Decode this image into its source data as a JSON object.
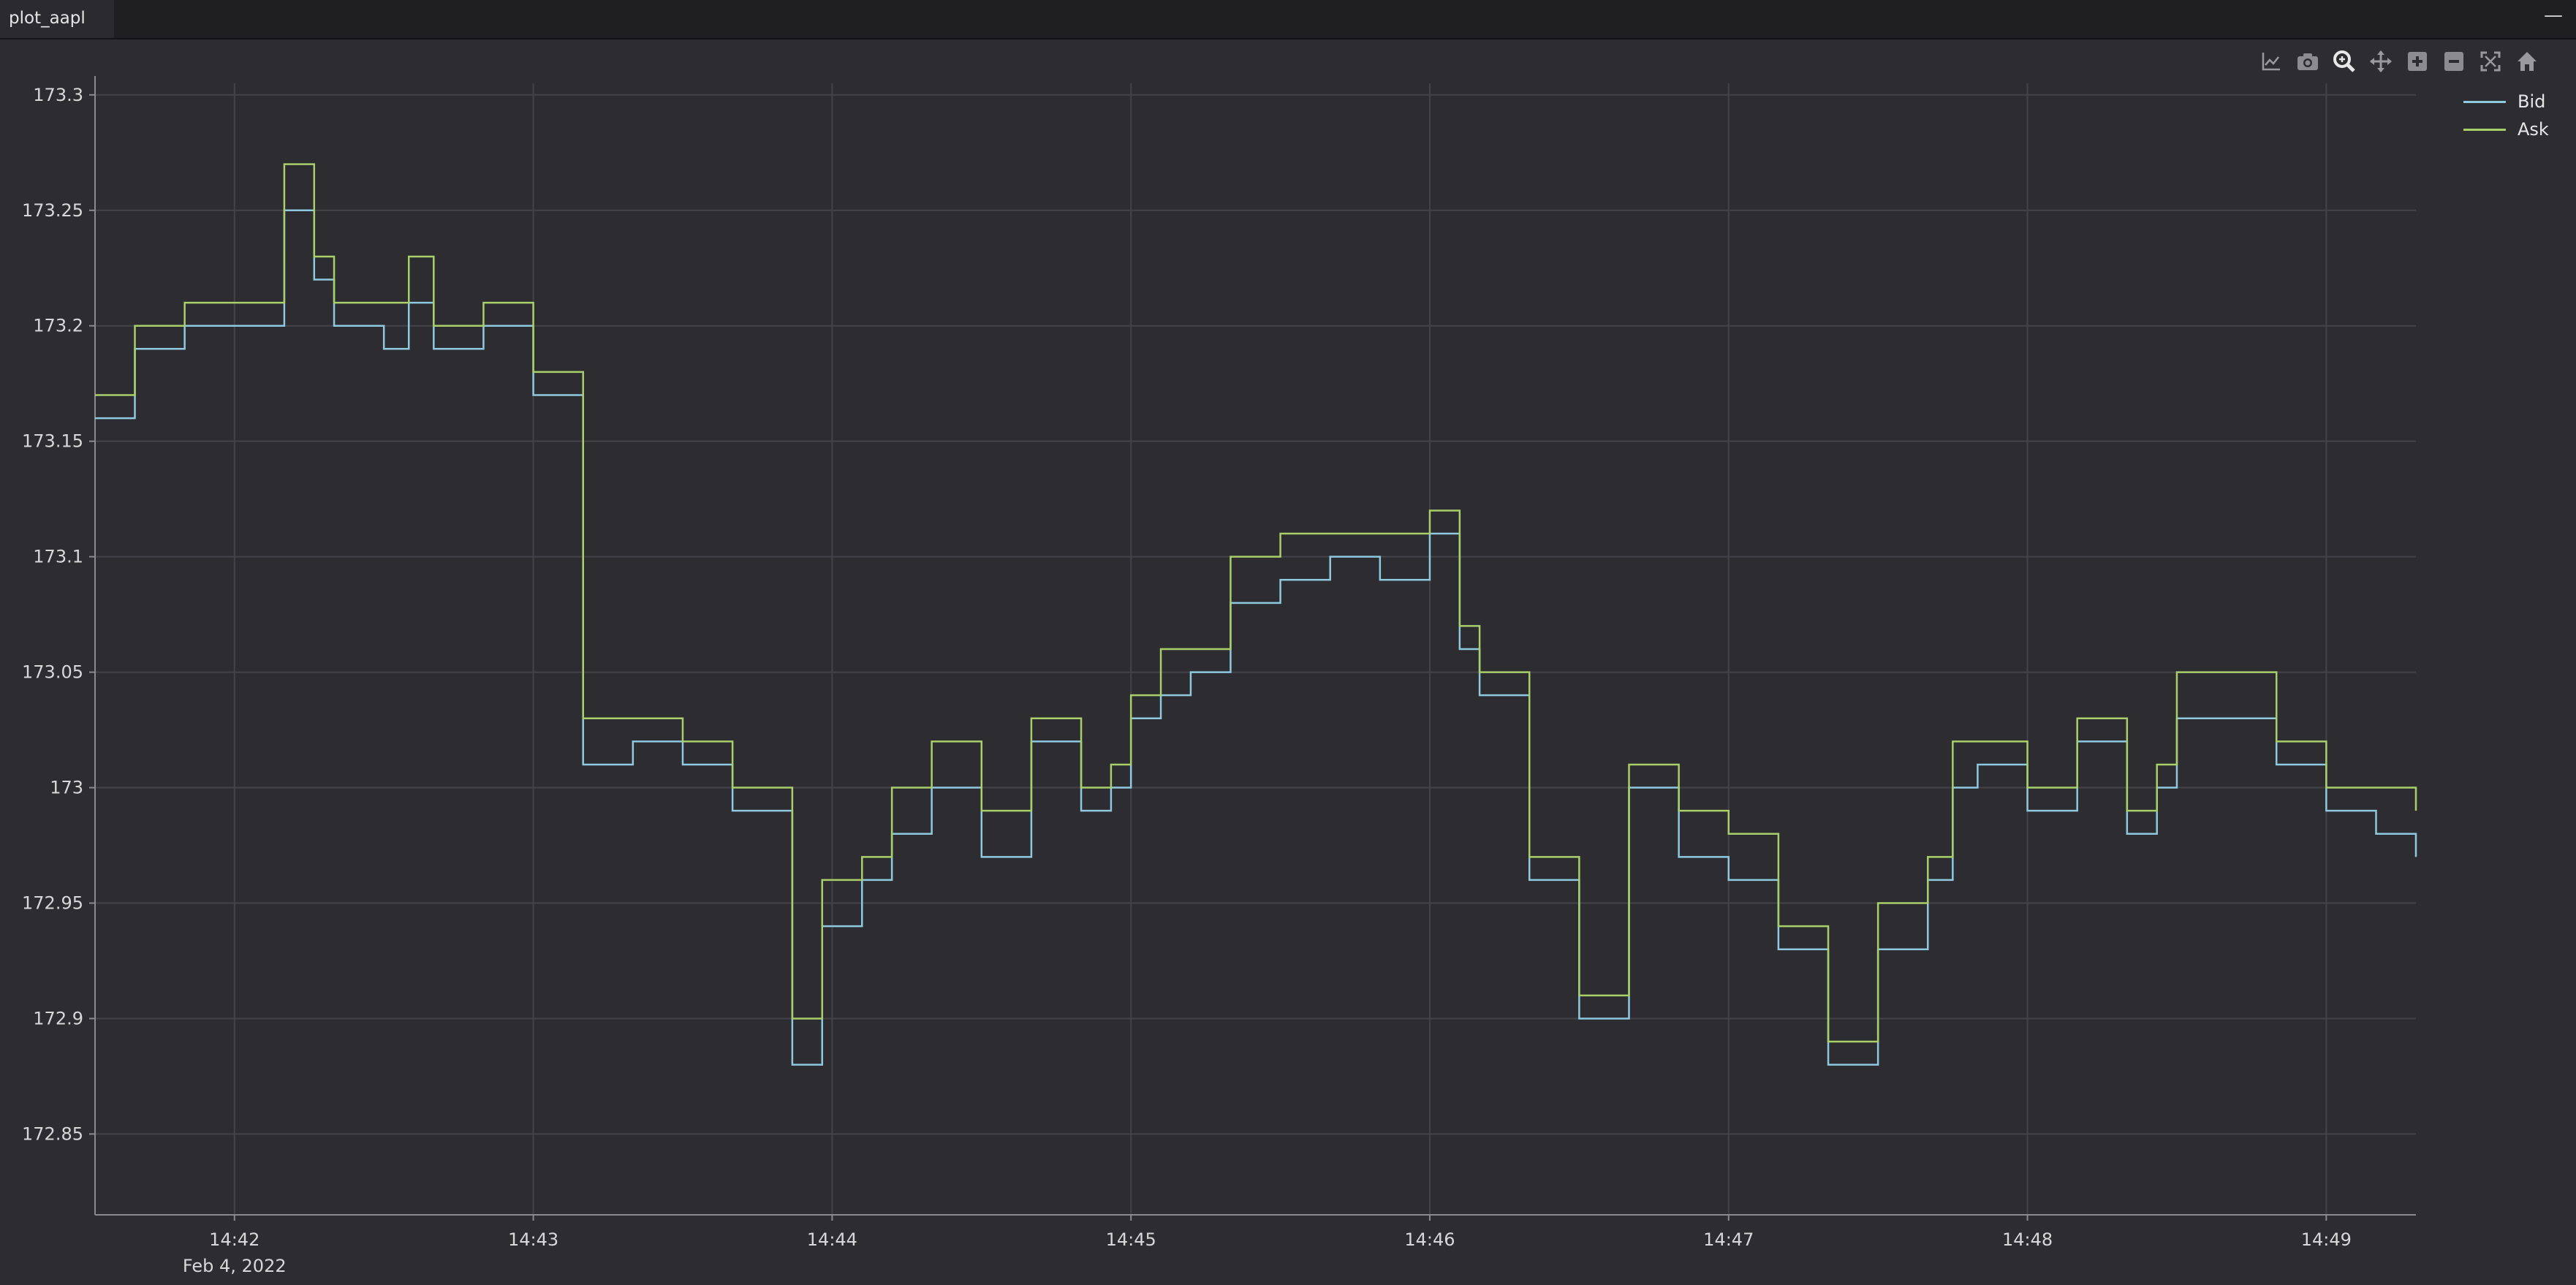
{
  "window": {
    "tab_title": "plot_aapl",
    "minimize_label": "—"
  },
  "toolbar": {
    "buttons": [
      {
        "name": "chart-options-icon"
      },
      {
        "name": "camera-icon"
      },
      {
        "name": "zoom-icon"
      },
      {
        "name": "pan-icon"
      },
      {
        "name": "zoom-in-icon"
      },
      {
        "name": "zoom-out-icon"
      },
      {
        "name": "fit-icon"
      },
      {
        "name": "home-icon"
      }
    ]
  },
  "colors": {
    "background": "#2d2c30",
    "grid": "#44434a",
    "axis_text": "#d8d8d8",
    "bid": "#8ec9df",
    "ask": "#a9cf6b"
  },
  "chart_data": {
    "type": "line",
    "title": "",
    "xlabel": "",
    "ylabel": "",
    "x_ticks": [
      "14:42",
      "14:43",
      "14:44",
      "14:45",
      "14:46",
      "14:47",
      "14:48",
      "14:49"
    ],
    "x_date_label": "Feb 4, 2022",
    "y_ticks": [
      "173.3",
      "173.25",
      "173.2",
      "173.15",
      "173.1",
      "173.05",
      "173",
      "172.95",
      "172.9",
      "172.85"
    ],
    "ylim": [
      172.815,
      173.305
    ],
    "xlim": [
      "14:41:32",
      "14:49:18"
    ],
    "grid": true,
    "legend_position": "top-right",
    "x": [
      "14:41:32",
      "14:41:40",
      "14:41:50",
      "14:42:00",
      "14:42:10",
      "14:42:16",
      "14:42:20",
      "14:42:30",
      "14:42:35",
      "14:42:40",
      "14:42:50",
      "14:43:00",
      "14:43:10",
      "14:43:20",
      "14:43:30",
      "14:43:40",
      "14:43:52",
      "14:43:58",
      "14:44:06",
      "14:44:12",
      "14:44:20",
      "14:44:30",
      "14:44:40",
      "14:44:50",
      "14:44:56",
      "14:45:00",
      "14:45:06",
      "14:45:12",
      "14:45:20",
      "14:45:30",
      "14:45:40",
      "14:45:50",
      "14:46:00",
      "14:46:06",
      "14:46:10",
      "14:46:20",
      "14:46:30",
      "14:46:40",
      "14:46:50",
      "14:47:00",
      "14:47:10",
      "14:47:20",
      "14:47:30",
      "14:47:40",
      "14:47:45",
      "14:47:50",
      "14:48:00",
      "14:48:10",
      "14:48:20",
      "14:48:26",
      "14:48:30",
      "14:48:40",
      "14:48:50",
      "14:49:00",
      "14:49:10",
      "14:49:18"
    ],
    "series": [
      {
        "name": "Bid",
        "values": [
          173.16,
          173.19,
          173.2,
          173.2,
          173.25,
          173.22,
          173.2,
          173.19,
          173.21,
          173.19,
          173.2,
          173.17,
          173.01,
          173.02,
          173.01,
          172.99,
          172.88,
          172.94,
          172.96,
          172.98,
          173.0,
          172.97,
          173.02,
          172.99,
          173.0,
          173.03,
          173.04,
          173.05,
          173.08,
          173.09,
          173.1,
          173.09,
          173.11,
          173.06,
          173.04,
          172.96,
          172.9,
          173.0,
          172.97,
          172.96,
          172.93,
          172.88,
          172.93,
          172.96,
          173.0,
          173.01,
          172.99,
          173.02,
          172.98,
          173.0,
          173.03,
          173.03,
          173.01,
          172.99,
          172.98,
          172.97
        ]
      },
      {
        "name": "Ask",
        "values": [
          173.17,
          173.2,
          173.21,
          173.21,
          173.27,
          173.23,
          173.21,
          173.21,
          173.23,
          173.2,
          173.21,
          173.18,
          173.03,
          173.03,
          173.02,
          173.0,
          172.9,
          172.96,
          172.97,
          173.0,
          173.02,
          172.99,
          173.03,
          173.0,
          173.01,
          173.04,
          173.06,
          173.06,
          173.1,
          173.11,
          173.11,
          173.11,
          173.12,
          173.07,
          173.05,
          172.97,
          172.91,
          173.01,
          172.99,
          172.98,
          172.94,
          172.89,
          172.95,
          172.97,
          173.02,
          173.02,
          173.0,
          173.03,
          172.99,
          173.01,
          173.05,
          173.05,
          173.02,
          173.0,
          173.0,
          172.99
        ]
      }
    ]
  }
}
